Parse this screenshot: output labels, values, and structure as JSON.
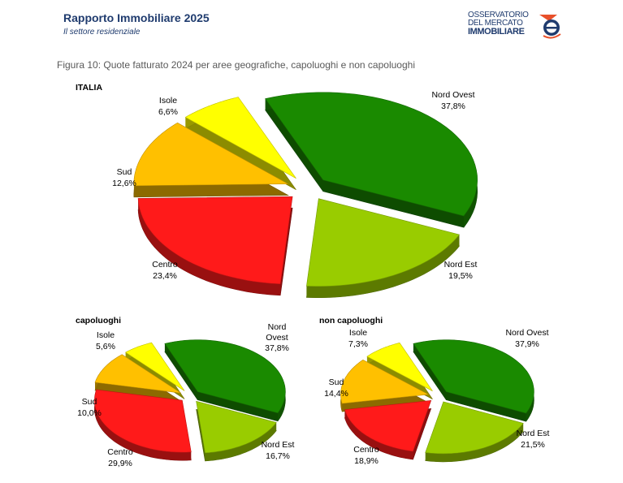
{
  "header": {
    "title": "Rapporto Immobiliare 2025",
    "subtitle": "Il settore residenziale"
  },
  "logo": {
    "line1": "OSSERVATORIO",
    "line2": "DEL MERCATO",
    "line3": "IMMOBILIARE"
  },
  "figure_caption": "Figura 10: Quote fatturato 2024 per aree geografiche, capoluoghi e non capoluoghi",
  "colors": {
    "Nord Ovest": "#1a8a00",
    "Nord Est": "#99cc00",
    "Centro": "#ff1a1a",
    "Sud": "#ffc000",
    "Isole": "#ffff00"
  },
  "chart_data": [
    {
      "type": "pie",
      "title": "ITALIA",
      "style": "3d-exploded",
      "slices": [
        {
          "label": "Nord Ovest",
          "value_text": "37,8%",
          "value": 37.8
        },
        {
          "label": "Nord Est",
          "value_text": "19,5%",
          "value": 19.5
        },
        {
          "label": "Centro",
          "value_text": "23,4%",
          "value": 23.4
        },
        {
          "label": "Sud",
          "value_text": "12,6%",
          "value": 12.6
        },
        {
          "label": "Isole",
          "value_text": "6,6%",
          "value": 6.6
        }
      ]
    },
    {
      "type": "pie",
      "title": "capoluoghi",
      "style": "3d-exploded",
      "slices": [
        {
          "label": "Nord Ovest",
          "value_text": "37,8%",
          "value": 37.8
        },
        {
          "label": "Nord Est",
          "value_text": "16,7%",
          "value": 16.7
        },
        {
          "label": "Centro",
          "value_text": "29,9%",
          "value": 29.9
        },
        {
          "label": "Sud",
          "value_text": "10,0%",
          "value": 10.0
        },
        {
          "label": "Isole",
          "value_text": "5,6%",
          "value": 5.6
        }
      ]
    },
    {
      "type": "pie",
      "title": "non capoluoghi",
      "style": "3d-exploded",
      "slices": [
        {
          "label": "Nord Ovest",
          "value_text": "37,9%",
          "value": 37.9
        },
        {
          "label": "Nord Est",
          "value_text": "21,5%",
          "value": 21.5
        },
        {
          "label": "Centro",
          "value_text": "18,9%",
          "value": 18.9
        },
        {
          "label": "Sud",
          "value_text": "14,4%",
          "value": 14.4
        },
        {
          "label": "Isole",
          "value_text": "7,3%",
          "value": 7.3
        }
      ]
    }
  ]
}
